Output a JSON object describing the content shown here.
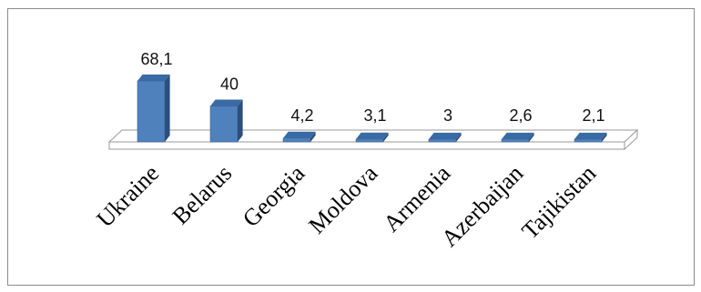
{
  "chart_data": {
    "type": "bar",
    "categories": [
      "Ukraine",
      "Belarus",
      "Georgia",
      "Moldova",
      "Armenia",
      "Azerbaijan",
      "Tajikistan"
    ],
    "values": [
      68.1,
      40,
      4.2,
      3.1,
      3,
      2.6,
      2.1
    ],
    "value_labels": [
      "68,1",
      "40",
      "4,2",
      "3,1",
      "3",
      "2,6",
      "2,1"
    ],
    "title": "",
    "xlabel": "",
    "ylabel": "",
    "ylim": [
      0,
      68.1
    ],
    "grid": false,
    "legend": "none",
    "bar_color": "#4f81bd",
    "bar_top_color": "#3a6aa3",
    "bar_side_color": "#2d4f7c",
    "floor_color": "#9a9a9a"
  }
}
